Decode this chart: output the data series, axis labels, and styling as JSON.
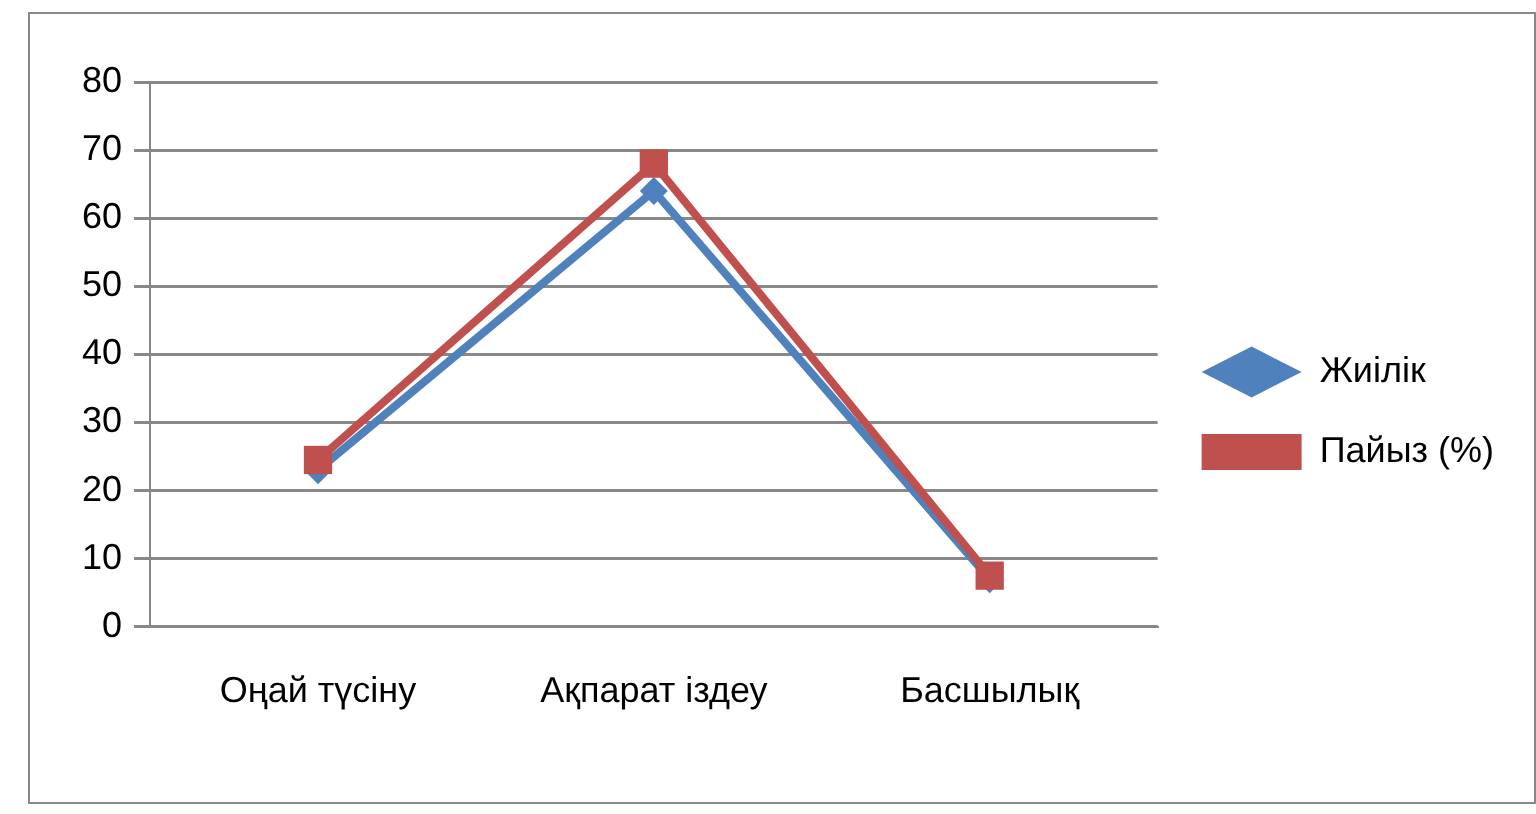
{
  "chart_data": {
    "type": "line",
    "categories": [
      "Оңай түсіну",
      "Ақпарат іздеу",
      "Басшылық"
    ],
    "series": [
      {
        "name": "Жиілік",
        "color": "#4f81bd",
        "marker": "diamond",
        "values": [
          23,
          64,
          7
        ]
      },
      {
        "name": "Пайыз (%)",
        "color": "#c0504d",
        "marker": "square",
        "values": [
          24.5,
          68,
          7.5
        ]
      }
    ],
    "ylim": [
      0,
      80
    ],
    "yticks": [
      0,
      10,
      20,
      30,
      40,
      50,
      60,
      70,
      80
    ],
    "grid": "y",
    "legend": "right"
  }
}
